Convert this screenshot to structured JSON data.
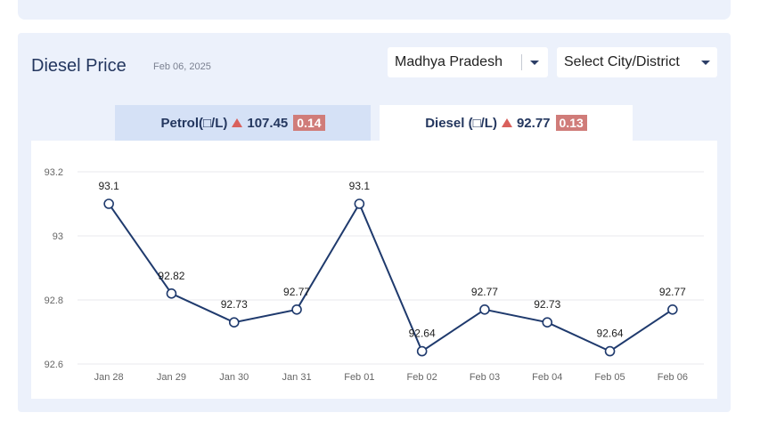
{
  "header": {
    "title": "Diesel Price",
    "date": "Feb 06, 2025",
    "state_select": "Madhya Pradesh",
    "city_select": "Select City/District"
  },
  "tabs": {
    "petrol": {
      "label": "Petrol(□/L)",
      "price": "107.45",
      "change": "0.14"
    },
    "diesel": {
      "label": "Diesel (□/L)",
      "price": "92.77",
      "change": "0.13"
    }
  },
  "colors": {
    "line": "#1f3a6d",
    "panel": "#ecf1fb",
    "up_arrow": "#d9605c",
    "badge": "#d07c79"
  },
  "chart_data": {
    "type": "line",
    "categories": [
      "Jan 28",
      "Jan 29",
      "Jan 30",
      "Jan 31",
      "Feb 01",
      "Feb 02",
      "Feb 03",
      "Feb 04",
      "Feb 05",
      "Feb 06"
    ],
    "values": [
      93.1,
      92.82,
      92.73,
      92.77,
      93.1,
      92.64,
      92.77,
      92.73,
      92.64,
      92.77
    ],
    "data_labels": [
      "93.1",
      "92.82",
      "92.73",
      "92.77",
      "93.1",
      "92.64",
      "92.77",
      "92.73",
      "92.64",
      "92.77"
    ],
    "yticks": [
      "92.6",
      "92.8",
      "93",
      "93.2"
    ],
    "ylim": [
      92.6,
      93.2
    ],
    "grid": true
  }
}
